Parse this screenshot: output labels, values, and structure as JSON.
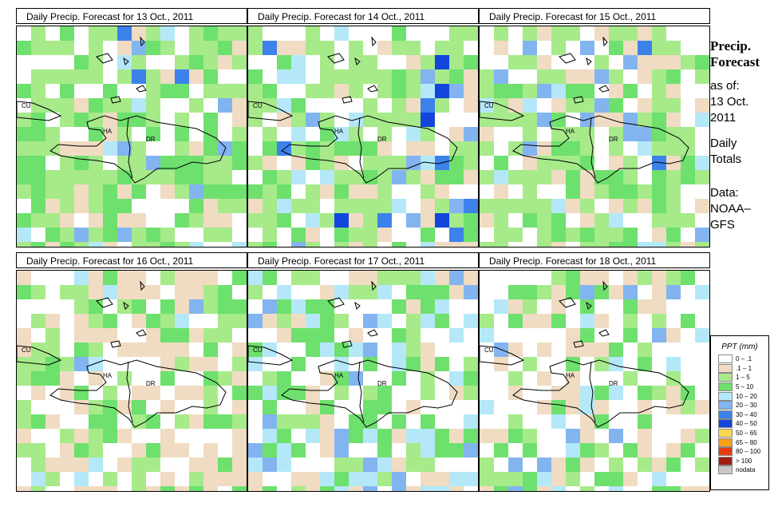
{
  "panels": [
    {
      "title": "Daily Precip. Forecast for  13 Oct., 2011",
      "map": {
        "labels": [
          "CU",
          "HA",
          "DR"
        ]
      },
      "dominant_class": "1 - 5",
      "wet_region": "central/north-east"
    },
    {
      "title": "Daily Precip. Forecast for  14 Oct., 2011",
      "map": {
        "labels": [
          "CU",
          "HA",
          "DR"
        ]
      },
      "dominant_class": "1 - 5",
      "wet_region": "east/south-east"
    },
    {
      "title": "Daily Precip. Forecast for  15 Oct., 2011",
      "map": {
        "labels": [
          "CU",
          "HA",
          "DR"
        ]
      },
      "dominant_class": "1 - 5",
      "wet_region": "west/north"
    },
    {
      "title": "Daily Precip. Forecast for  16 Oct., 2011",
      "map": {
        "labels": [
          "CU",
          "HA",
          "DR"
        ]
      },
      "dominant_class": ".1 - 1",
      "wet_region": "north"
    },
    {
      "title": "Daily Precip. Forecast for  17 Oct., 2011",
      "map": {
        "labels": [
          "CU",
          "HA",
          "DR"
        ]
      },
      "dominant_class": "5 - 10",
      "wet_region": "south"
    },
    {
      "title": "Daily Precip. Forecast for  18 Oct., 2011",
      "map": {
        "labels": [
          "CU",
          "HA",
          "DR"
        ]
      },
      "dominant_class": "5 - 10",
      "wet_region": "south-west"
    }
  ],
  "side": {
    "title_line1": "Precip.",
    "title_line2": "Forecast",
    "asof_line1": "as of:",
    "asof_line2": "13 Oct.",
    "asof_line3": "2011",
    "totals_line1": "Daily",
    "totals_line2": "Totals",
    "data_line1": "Data:",
    "data_line2": "NOAA–",
    "data_line3": "GFS"
  },
  "legend": {
    "title": "PPT (mm)",
    "items": [
      {
        "label": "0 – .1",
        "color": "#ffffff"
      },
      {
        "label": ".1 – 1",
        "color": "#f0dcc2"
      },
      {
        "label": "1 – 5",
        "color": "#a6ea8a"
      },
      {
        "label": "5 – 10",
        "color": "#6ee06e"
      },
      {
        "label": "10 – 20",
        "color": "#b4e8f8"
      },
      {
        "label": "20 – 30",
        "color": "#82b4f0"
      },
      {
        "label": "30 – 40",
        "color": "#3c82ea"
      },
      {
        "label": "40 – 50",
        "color": "#1246dc"
      },
      {
        "label": "50 – 65",
        "color": "#f8d850"
      },
      {
        "label": "65 – 80",
        "color": "#f8a018"
      },
      {
        "label": "80 – 100",
        "color": "#e83c10"
      },
      {
        "label": "> 100",
        "color": "#a01e14"
      },
      {
        "label": "nodata",
        "color": "#c8c8c8"
      }
    ]
  }
}
